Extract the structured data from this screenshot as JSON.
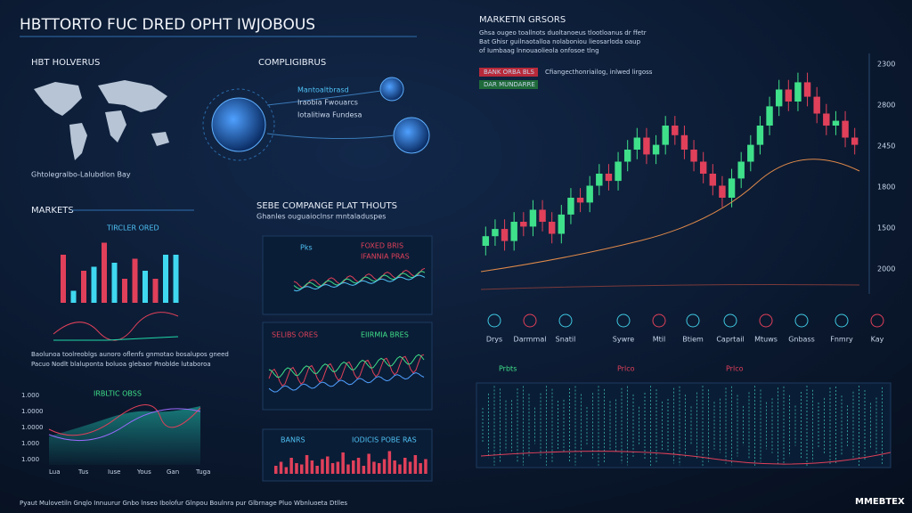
{
  "header": {
    "title": "HBTTORTO FUC DRED OPHT IWJOBOUS"
  },
  "left": {
    "map_title": "HBT HOLVERUS",
    "map_caption": "Ghtolegralbo-Lalubdlon Bay",
    "globe_title": "COMPLIGIBRUS",
    "globe_notes": [
      "Mantoaltbrasd",
      "Iraobia Fwouarcs",
      "Iotalitiwa Fundesa"
    ],
    "markets": {
      "type": "bar",
      "title": "MARKETS",
      "legend": "TIRCLER ORED",
      "values": [
        60,
        15,
        40,
        45,
        75,
        50,
        30,
        55,
        40,
        30,
        60,
        60
      ],
      "colors": [
        "#e0405a",
        "#3fd8f0",
        "#e0405a",
        "#3fd8f0",
        "#e0405a",
        "#3fd8f0",
        "#e0405a",
        "#e0405a",
        "#3fd8f0",
        "#e0405a",
        "#3fd8f0",
        "#3fd8f0"
      ],
      "ylim": [
        0,
        100
      ],
      "caption": [
        "Baolunoa toolreoblgs aunoro oflenfs gnmotao bosalupos gneed",
        "Pacuo Nodlt blaluponta boluoa glebaor Pnoblde lutaboroa"
      ]
    },
    "trend": {
      "title": "IRBLTIC OBSS",
      "axis_labels": [
        "1.000",
        "1.0000",
        "1.0000",
        "1.000",
        "1.000"
      ],
      "x_labels": [
        "Lua",
        "Tus",
        "Iuse",
        "Yous",
        "Gan",
        "Tuga"
      ]
    }
  },
  "middle": {
    "title": "SEBE COMPANGE PLAT THOUTS",
    "subtitle": "Ghanles ouguaioclnsr mntaladuspes",
    "panel1": {
      "tag": "Pks",
      "legend": [
        "FOXED BRIS",
        "IFANNIA PRAS"
      ]
    },
    "panel2": {
      "tag": "SELIBS ORES",
      "legend": [
        "EIIRMIA BRES"
      ]
    },
    "bars": {
      "type": "bar",
      "tag": "BANRS",
      "legend": "IODICIS POBE RAS",
      "values": [
        30,
        45,
        25,
        60,
        40,
        35,
        70,
        50,
        30,
        55,
        65,
        40,
        45,
        80,
        35,
        50,
        60,
        30,
        75,
        45,
        40,
        55,
        85,
        50,
        35,
        60,
        45,
        70,
        40,
        55
      ],
      "ylim": [
        0,
        100
      ]
    }
  },
  "right": {
    "title": "MARKETIN GRSORS",
    "text": [
      "Ghsa ougeo toallnots duoltanoeus tlootloanus dr ffetr",
      "Bat Ghisr guilnaotalloa nolaboniou lieosarloda oaup",
      "of Iumbaag lnnouaolieola onfosoe tlng"
    ],
    "buttons": [
      "BANK ORBA BLS",
      "DAR MUNDARRE"
    ],
    "note": "Cfiangecthonriailog, inlwed lirgoss",
    "candles": {
      "type": "candlestick",
      "open": [
        20,
        24,
        27,
        22,
        30,
        28,
        35,
        30,
        25,
        33,
        40,
        38,
        45,
        50,
        47,
        55,
        60,
        65,
        58,
        62,
        70,
        66,
        60,
        55,
        50,
        45,
        40,
        48,
        55,
        62,
        70,
        78,
        85,
        80,
        88,
        82,
        75,
        70,
        72,
        65
      ],
      "close": [
        24,
        27,
        22,
        30,
        28,
        35,
        30,
        25,
        33,
        40,
        38,
        45,
        50,
        47,
        55,
        60,
        65,
        58,
        62,
        70,
        66,
        60,
        55,
        50,
        45,
        40,
        48,
        55,
        62,
        70,
        78,
        85,
        80,
        88,
        82,
        75,
        70,
        72,
        65,
        62
      ],
      "high": [
        28,
        31,
        31,
        34,
        34,
        39,
        39,
        34,
        37,
        44,
        44,
        49,
        54,
        54,
        59,
        64,
        69,
        69,
        66,
        74,
        74,
        70,
        64,
        59,
        54,
        49,
        52,
        59,
        66,
        74,
        82,
        89,
        89,
        92,
        92,
        86,
        79,
        76,
        76,
        69
      ],
      "low": [
        16,
        20,
        18,
        18,
        24,
        24,
        26,
        21,
        21,
        29,
        34,
        34,
        41,
        43,
        43,
        51,
        56,
        54,
        54,
        58,
        62,
        56,
        51,
        46,
        41,
        36,
        36,
        44,
        51,
        58,
        66,
        74,
        76,
        76,
        78,
        71,
        66,
        66,
        61,
        58
      ],
      "ylim": [
        0,
        100
      ],
      "axis_labels": [
        "2300",
        "2800",
        "2450",
        "1800",
        "1500",
        "2000"
      ]
    },
    "icons": [
      "Drys",
      "Darmmal",
      "Snatil",
      "Sywre",
      "Mtil",
      "Btiem",
      "Caprtail",
      "Mtuws",
      "Gnbass",
      "Fnmry",
      "Kay"
    ],
    "wave_tags": [
      "Prbts",
      "Prlco",
      "Prlco"
    ]
  },
  "footer": {
    "text": "Pyaut Mulovetiln Gnqlo Innuurur Gnbo lnseo Ibolofur Glnpou Boulnra pur Glbrnage Pluo Wbnluoeta Dtlles",
    "brand": "MMEBTEX"
  }
}
